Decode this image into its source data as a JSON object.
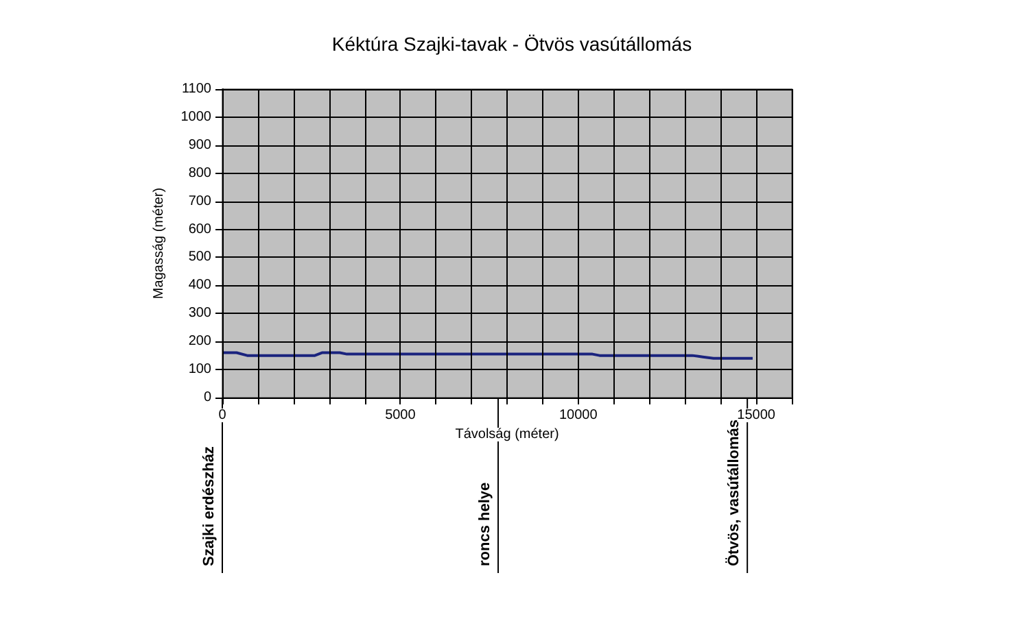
{
  "chart_data": {
    "type": "line",
    "title": "Kéktúra Szajki-tavak - Ötvös vasútállomás",
    "xlabel": "Távolság (méter)",
    "ylabel": "Magasság (méter)",
    "x": [
      0,
      400,
      700,
      2600,
      2800,
      3300,
      3500,
      10400,
      10600,
      13200,
      13500,
      13800,
      14900
    ],
    "series": [
      {
        "color": "#1a237e",
        "values": [
          160,
          160,
          150,
          150,
          160,
          160,
          155,
          155,
          150,
          150,
          145,
          140,
          140
        ]
      }
    ],
    "xlim": [
      0,
      16000
    ],
    "xticks": [
      0,
      {
        "value": 1000,
        "label": null
      },
      {
        "value": 2000,
        "label": null
      },
      {
        "value": 3000,
        "label": null
      },
      {
        "value": 4000,
        "label": null
      },
      5000,
      {
        "value": 6000,
        "label": null
      },
      {
        "value": 7000,
        "label": null
      },
      {
        "value": 8000,
        "label": null
      },
      {
        "value": 9000,
        "label": null
      },
      10000,
      {
        "value": 11000,
        "label": null
      },
      {
        "value": 12000,
        "label": null
      },
      {
        "value": 13000,
        "label": null
      },
      {
        "value": 14000,
        "label": null
      },
      15000,
      {
        "value": 16000,
        "label": null
      }
    ],
    "ylim": [
      0,
      1100
    ],
    "yticks": [
      0,
      100,
      200,
      300,
      400,
      500,
      600,
      700,
      800,
      900,
      1000,
      1100
    ],
    "grid": true,
    "marker": "none",
    "line_style": "solid",
    "ref_lines": [
      {
        "axis": "x",
        "value": 0,
        "label": "Szajki erdészház",
        "color": "#000000"
      },
      {
        "axis": "x",
        "value": 7750,
        "label": "roncs helye",
        "color": "#000000"
      },
      {
        "axis": "x",
        "value": 14750,
        "label": "Ötvös, vasútállomás",
        "color": "#000000"
      }
    ]
  }
}
